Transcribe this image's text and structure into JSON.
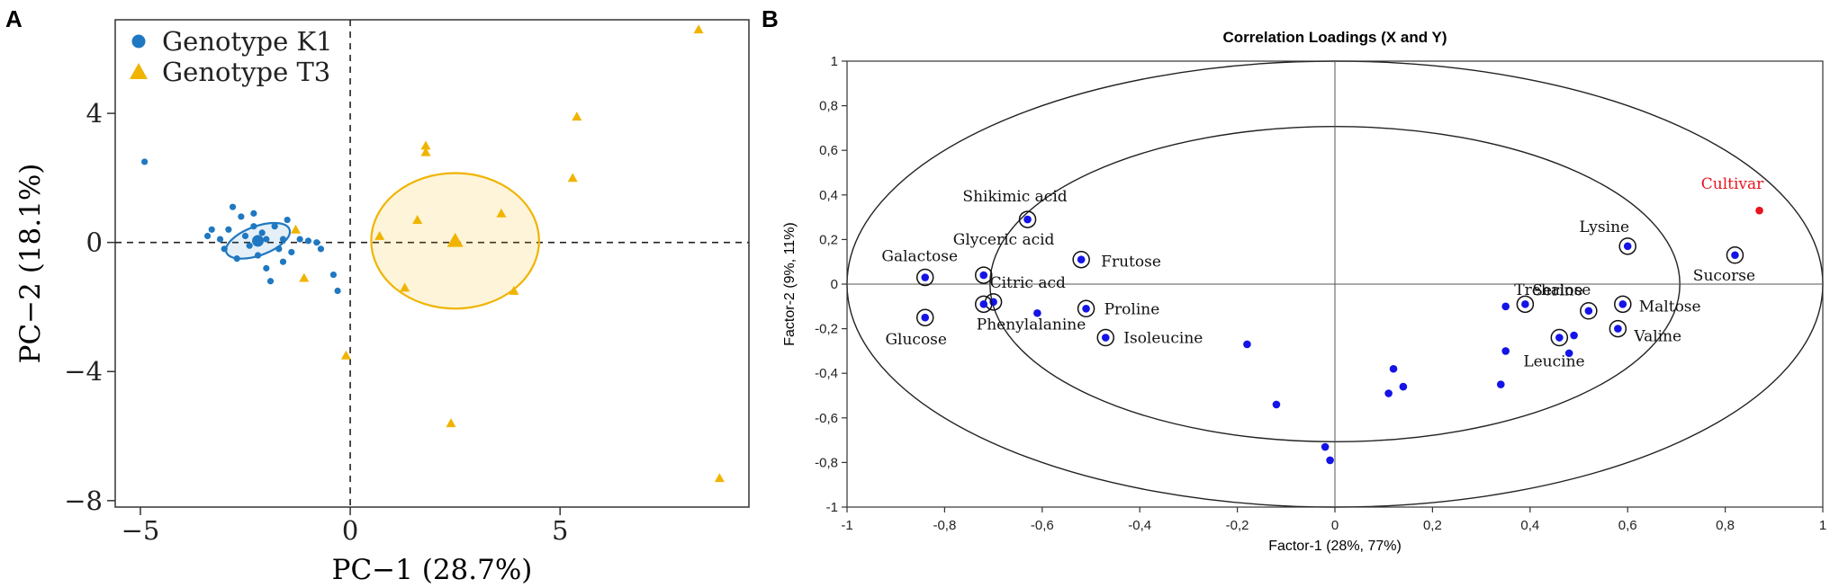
{
  "chart_data": [
    {
      "panel_label": "A",
      "type": "scatter",
      "title": "",
      "xlabel": "PC−1 (28.7%)",
      "ylabel": "PC−2 (18.1%)",
      "xlim": [
        -5.6,
        9.5
      ],
      "ylim": [
        -8.2,
        6.9
      ],
      "xticks": [
        -5,
        0,
        5
      ],
      "xtick_labels": [
        "−5",
        "0",
        "5"
      ],
      "yticks": [
        -8,
        -4,
        0,
        4
      ],
      "ytick_labels": [
        "−8",
        "−4",
        "0",
        "4"
      ],
      "grid": false,
      "legend_position": "top-left",
      "series": [
        {
          "name": "Genotype K1",
          "marker": "circle",
          "color": "#1f78c1",
          "points": [
            [
              -4.9,
              2.5
            ],
            [
              -3.4,
              0.2
            ],
            [
              -3.3,
              0.4
            ],
            [
              -3.1,
              0.1
            ],
            [
              -3.0,
              -0.2
            ],
            [
              -2.9,
              0.4
            ],
            [
              -2.8,
              1.1
            ],
            [
              -2.7,
              -0.5
            ],
            [
              -2.6,
              0.8
            ],
            [
              -2.5,
              0.2
            ],
            [
              -2.4,
              -0.1
            ],
            [
              -2.3,
              0.5
            ],
            [
              -2.3,
              0.9
            ],
            [
              -2.2,
              -0.4
            ],
            [
              -2.2,
              0.05
            ],
            [
              -2.1,
              0.3
            ],
            [
              -2.0,
              -0.8
            ],
            [
              -2.0,
              0.1
            ],
            [
              -1.9,
              -1.2
            ],
            [
              -1.8,
              0.5
            ],
            [
              -1.7,
              -0.2
            ],
            [
              -1.6,
              -0.6
            ],
            [
              -1.6,
              0.1
            ],
            [
              -1.5,
              0.7
            ],
            [
              -1.4,
              -0.3
            ],
            [
              -1.2,
              0.1
            ],
            [
              -1.0,
              0.05
            ],
            [
              -0.8,
              0.0
            ],
            [
              -0.7,
              -0.2
            ],
            [
              -0.4,
              -1.0
            ],
            [
              -0.3,
              -1.5
            ]
          ],
          "ellipse": {
            "center": [
              -2.2,
              0.05
            ],
            "rx": 0.8,
            "ry": 0.45,
            "rotation_deg": -20
          }
        },
        {
          "name": "Genotype T3",
          "marker": "triangle",
          "color": "#f0b400",
          "points": [
            [
              -1.3,
              0.4
            ],
            [
              -1.1,
              -1.1
            ],
            [
              -0.1,
              -3.5
            ],
            [
              0.7,
              0.2
            ],
            [
              1.3,
              -1.4
            ],
            [
              1.6,
              0.7
            ],
            [
              1.8,
              2.8
            ],
            [
              1.8,
              3.0
            ],
            [
              2.5,
              0.0
            ],
            [
              2.5,
              0.0
            ],
            [
              2.4,
              -5.6
            ],
            [
              3.6,
              0.9
            ],
            [
              3.9,
              -1.5
            ],
            [
              5.3,
              2.0
            ],
            [
              5.4,
              3.9
            ],
            [
              8.3,
              6.6
            ],
            [
              8.8,
              -7.3
            ]
          ],
          "ellipse": {
            "center": [
              2.5,
              0.05
            ],
            "rx": 2.0,
            "ry": 2.1,
            "rotation_deg": 0
          }
        }
      ],
      "reference_lines": {
        "x": 0,
        "y": 0,
        "style": "dashed"
      }
    },
    {
      "panel_label": "B",
      "type": "scatter",
      "title": "Correlation Loadings (X and Y)",
      "xlabel": "Factor-1 (28%, 77%)",
      "ylabel": "Factor-2 (9%, 11%)",
      "xlim": [
        -1,
        1
      ],
      "ylim": [
        -1,
        1
      ],
      "xticks": [
        -1,
        -0.8,
        -0.6,
        -0.4,
        -0.2,
        0,
        0.2,
        0.4,
        0.6,
        0.8,
        1
      ],
      "xtick_labels": [
        "-1",
        "-0,8",
        "-0,6",
        "-0,4",
        "-0,2",
        "0",
        "0,2",
        "0,4",
        "0,6",
        "0,8",
        "1"
      ],
      "yticks": [
        -1,
        -0.8,
        -0.6,
        -0.4,
        -0.2,
        0,
        0.2,
        0.4,
        0.6,
        0.8,
        1
      ],
      "ytick_labels": [
        "-1",
        "-0,8",
        "-0,6",
        "-0,4",
        "-0,2",
        "0",
        "0,2",
        "0,4",
        "0,6",
        "0,8",
        "1"
      ],
      "grid": false,
      "reference_lines": {
        "x": 0,
        "y": 0,
        "style": "solid"
      },
      "ellipses": [
        {
          "name": "outer",
          "center": [
            0,
            0
          ],
          "rx": 1.0,
          "ry": 1.0
        },
        {
          "name": "inner",
          "center": [
            0,
            0
          ],
          "rx": 0.707,
          "ry": 0.707
        }
      ],
      "labeled_points": [
        {
          "label": "Shikimic acid",
          "x": -0.63,
          "y": 0.29
        },
        {
          "label": "Glyceric acid",
          "x": -0.72,
          "y": 0.04
        },
        {
          "label": "Frutose",
          "x": -0.52,
          "y": 0.11
        },
        {
          "label": "Galactose",
          "x": -0.84,
          "y": 0.03
        },
        {
          "label": "Citric acd",
          "x": -0.7,
          "y": -0.08
        },
        {
          "label": "Glucose",
          "x": -0.84,
          "y": -0.15
        },
        {
          "label": "Phenylalanine",
          "x": -0.72,
          "y": -0.09
        },
        {
          "label": "Proline",
          "x": -0.51,
          "y": -0.11
        },
        {
          "label": "Isoleucine",
          "x": -0.47,
          "y": -0.24
        },
        {
          "label": "Lysine",
          "x": 0.6,
          "y": 0.17
        },
        {
          "label": "Sucorse",
          "x": 0.82,
          "y": 0.13
        },
        {
          "label": "Trehalose",
          "x": 0.52,
          "y": -0.12
        },
        {
          "label": "Serine",
          "x": 0.39,
          "y": -0.09
        },
        {
          "label": "Maltose",
          "x": 0.59,
          "y": -0.09
        },
        {
          "label": "Valine",
          "x": 0.58,
          "y": -0.2
        },
        {
          "label": "Leucine",
          "x": 0.46,
          "y": -0.24
        }
      ],
      "unlabeled_points": [
        [
          -0.61,
          -0.13
        ],
        [
          -0.18,
          -0.27
        ],
        [
          -0.12,
          -0.54
        ],
        [
          -0.02,
          -0.73
        ],
        [
          -0.01,
          -0.79
        ],
        [
          0.11,
          -0.49
        ],
        [
          0.12,
          -0.38
        ],
        [
          0.14,
          -0.46
        ],
        [
          0.34,
          -0.45
        ],
        [
          0.35,
          -0.3
        ],
        [
          0.35,
          -0.1
        ],
        [
          0.48,
          -0.31
        ],
        [
          0.49,
          -0.23
        ]
      ],
      "y_variable": {
        "label": "Cultivar",
        "x": 0.87,
        "y": 0.33,
        "color": "#e8141e"
      }
    }
  ]
}
